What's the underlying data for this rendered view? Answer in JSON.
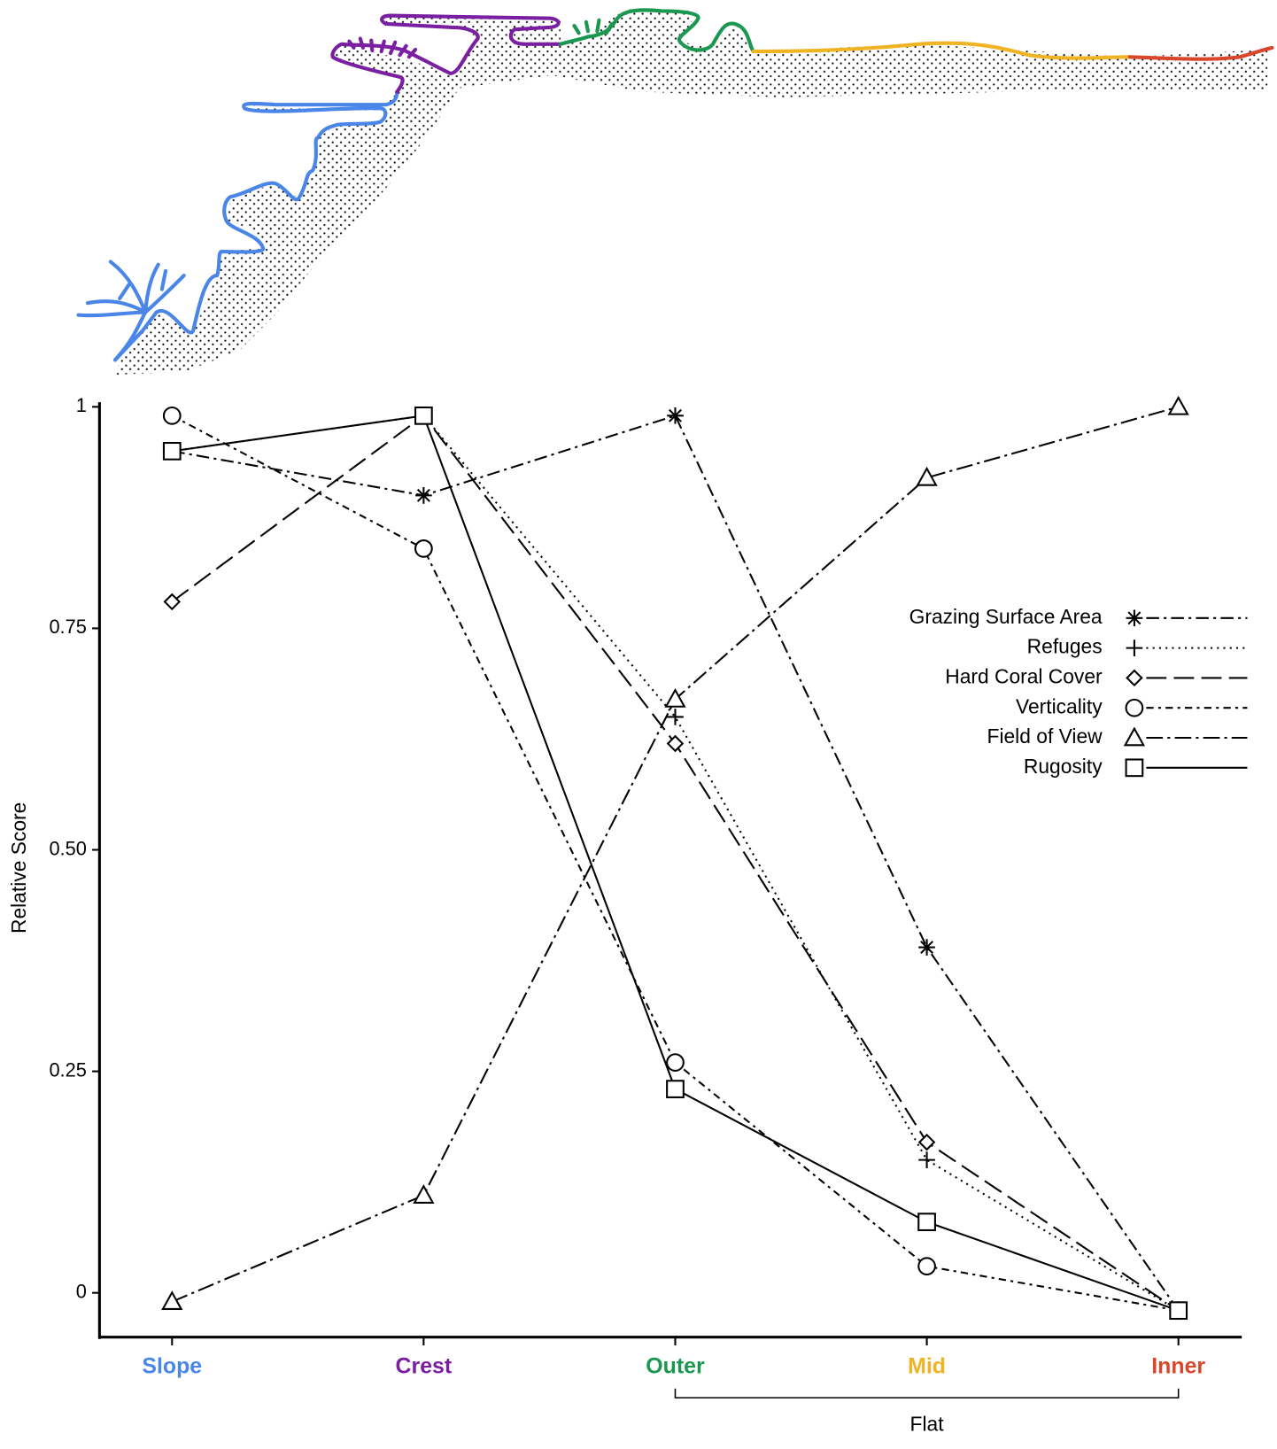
{
  "chart_data": {
    "type": "line",
    "y_label": "Relative Score",
    "categories": [
      "Slope",
      "Crest",
      "Outer",
      "Mid",
      "Inner"
    ],
    "category_colors": [
      "#4a86e8",
      "#7b1fa2",
      "#1a9850",
      "#f0b323",
      "#d9472b"
    ],
    "ylim": [
      -0.05,
      1.0
    ],
    "yticks": [
      0,
      0.25,
      {
        "value": 0.5,
        "label": "0.50"
      },
      0.75,
      1
    ],
    "bracket": {
      "label": "Flat",
      "categories": [
        "Outer",
        "Inner"
      ]
    },
    "legend": "right",
    "series": [
      {
        "name": "Grazing Surface Area",
        "color": "#000000",
        "marker": "asterisk",
        "linestyle": "dashdot",
        "values": [
          0.95,
          0.9,
          0.99,
          0.39,
          -0.02
        ]
      },
      {
        "name": "Refuges",
        "color": "#000000",
        "marker": "plus",
        "linestyle": "dotted",
        "values": [
          0.95,
          0.99,
          0.65,
          0.15,
          -0.02
        ]
      },
      {
        "name": "Hard Coral Cover",
        "color": "#000000",
        "marker": "diamond",
        "linestyle": "dashed",
        "values": [
          0.78,
          0.99,
          0.62,
          0.17,
          -0.02
        ]
      },
      {
        "name": "Verticality",
        "color": "#000000",
        "marker": "circle",
        "linestyle": "dashdotshort",
        "values": [
          0.99,
          0.84,
          0.26,
          0.03,
          -0.02
        ]
      },
      {
        "name": "Field of View",
        "color": "#000000",
        "marker": "triangle",
        "linestyle": "dashdotlong",
        "values": [
          -0.01,
          0.11,
          0.67,
          0.92,
          1.0
        ]
      },
      {
        "name": "Rugosity",
        "color": "#000000",
        "marker": "square",
        "linestyle": "solid",
        "values": [
          0.95,
          0.99,
          0.23,
          0.08,
          -0.02
        ]
      }
    ]
  }
}
